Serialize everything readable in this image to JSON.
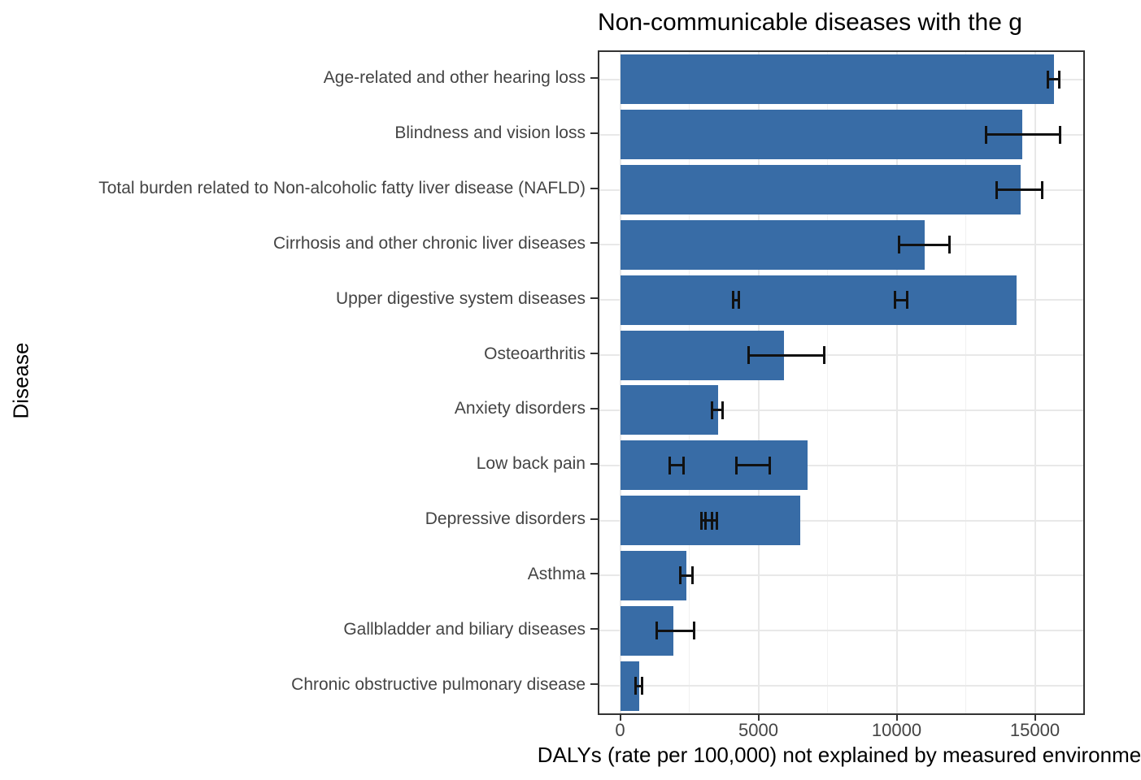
{
  "title": "Non-communicable diseases with the g",
  "axes": {
    "x_label": "DALYs (rate per 100,000) not explained by measured environme",
    "y_label": "Disease",
    "x_ticks": [
      0,
      5000,
      10000,
      15000
    ],
    "x_minor_ticks": [
      2500,
      7500,
      12500
    ]
  },
  "style": {
    "bar_color": "#386CA6",
    "errorbar_color": "#111111",
    "grid_major_color": "#e8e8e8",
    "grid_minor_color": "#f1f1f1",
    "panel_border_color": "#333333",
    "tick_text_color": "#444444"
  },
  "chart_data": {
    "type": "bar",
    "orientation": "horizontal",
    "title": "Non-communicable diseases with the g",
    "xlabel": "DALYs (rate per 100,000) not explained by measured environme",
    "ylabel": "Disease",
    "xlim": [
      -750,
      16750
    ],
    "grid": true,
    "legend": false,
    "categories": [
      "Age-related and other hearing loss",
      "Blindness and vision loss",
      "Total burden related to Non-alcoholic fatty liver disease (NAFLD)",
      "Cirrhosis and other chronic liver diseases",
      "Upper digestive system diseases",
      "Osteoarthritis",
      "Anxiety disorders",
      "Low back pain",
      "Depressive disorders",
      "Asthma",
      "Gallbladder and biliary diseases",
      "Chronic obstructive pulmonary disease"
    ],
    "values": [
      15690,
      14540,
      14480,
      11010,
      14340,
      5930,
      3540,
      6780,
      6510,
      2400,
      1930,
      690
    ],
    "error_bars": [
      [
        [
          15430,
          15930
        ]
      ],
      [
        [
          13190,
          15960
        ]
      ],
      [
        [
          13570,
          15310
        ]
      ],
      [
        [
          10040,
          11950
        ]
      ],
      [
        [
          4040,
          4340
        ],
        [
          9900,
          10430
        ]
      ],
      [
        [
          4600,
          7430
        ]
      ],
      [
        [
          3280,
          3750
        ]
      ],
      [
        [
          1750,
          2340
        ],
        [
          4160,
          5460
        ]
      ],
      [
        [
          2900,
          3370
        ],
        [
          3050,
          3540
        ]
      ],
      [
        [
          2130,
          2660
        ]
      ],
      [
        [
          1280,
          2720
        ]
      ],
      [
        [
          510,
          840
        ]
      ]
    ]
  }
}
